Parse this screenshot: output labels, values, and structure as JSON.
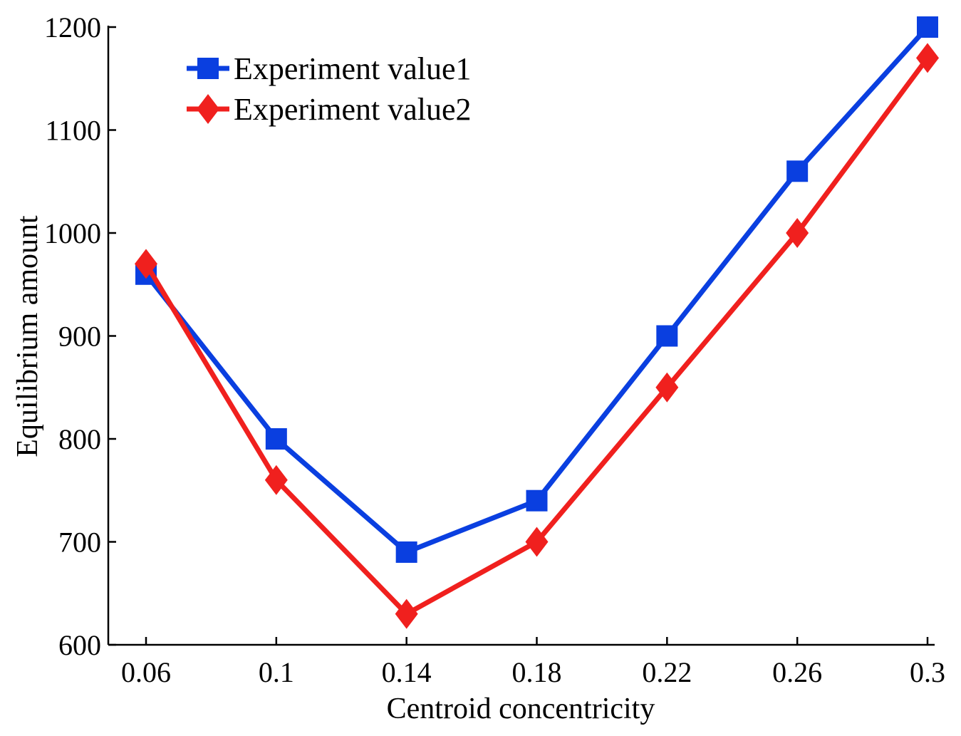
{
  "chart_data": {
    "type": "line",
    "title": "",
    "xlabel": "Centroid concentricity",
    "ylabel": "Equilibrium amount",
    "categories": [
      "0.06",
      "0.1",
      "0.14",
      "0.18",
      "0.22",
      "0.26",
      "0.3"
    ],
    "x": [
      0.06,
      0.1,
      0.14,
      0.18,
      0.22,
      0.26,
      0.3
    ],
    "xlim": [
      0.06,
      0.3
    ],
    "ylim": [
      600,
      1200
    ],
    "yticks": [
      600,
      700,
      800,
      900,
      1000,
      1100,
      1200
    ],
    "grid": false,
    "legend_position": "top-left",
    "series": [
      {
        "name": "Experiment value1",
        "color": "#0a3fe0",
        "marker": "square",
        "values": [
          960,
          800,
          690,
          740,
          900,
          1060,
          1200
        ]
      },
      {
        "name": "Experiment value2",
        "color": "#f0201e",
        "marker": "diamond",
        "values": [
          970,
          760,
          630,
          700,
          850,
          1000,
          1170
        ]
      }
    ]
  }
}
